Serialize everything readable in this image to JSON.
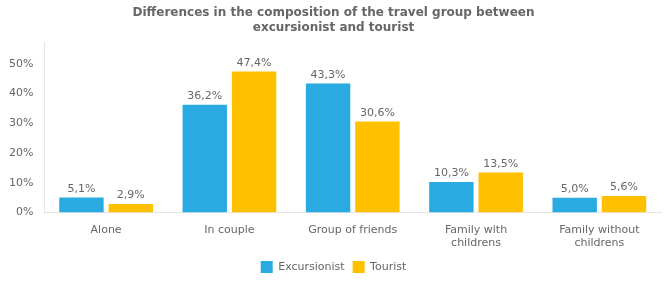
{
  "chart_data": {
    "type": "bar",
    "title": "Differences in the composition of the travel group between\nexcursionist and tourist",
    "categories": [
      "Alone",
      "In couple",
      "Group of friends",
      "Family with\nchildrens",
      "Family without\nchildrens"
    ],
    "series": [
      {
        "name": "Excursionist",
        "color": "#29ABE2",
        "values": [
          5.1,
          36.2,
          43.3,
          10.3,
          5.0
        ],
        "value_labels": [
          "5,1%",
          "36,2%",
          "43,3%",
          "10,3%",
          "5,0%"
        ]
      },
      {
        "name": "Tourist",
        "color": "#FFC000",
        "values": [
          2.9,
          47.4,
          30.6,
          13.5,
          5.6
        ],
        "value_labels": [
          "2,9%",
          "47,4%",
          "30,6%",
          "13,5%",
          "5,6%"
        ]
      }
    ],
    "ylim": [
      0,
      57
    ],
    "yticks": [
      {
        "value": 0,
        "label": "0%"
      },
      {
        "value": 10,
        "label": "10%"
      },
      {
        "value": 20,
        "label": "20%"
      },
      {
        "value": 30,
        "label": "30%"
      },
      {
        "value": 40,
        "label": "40%"
      },
      {
        "value": 50,
        "label": "50%"
      }
    ],
    "grid": false,
    "legend": "bottom",
    "data_labels": true
  }
}
